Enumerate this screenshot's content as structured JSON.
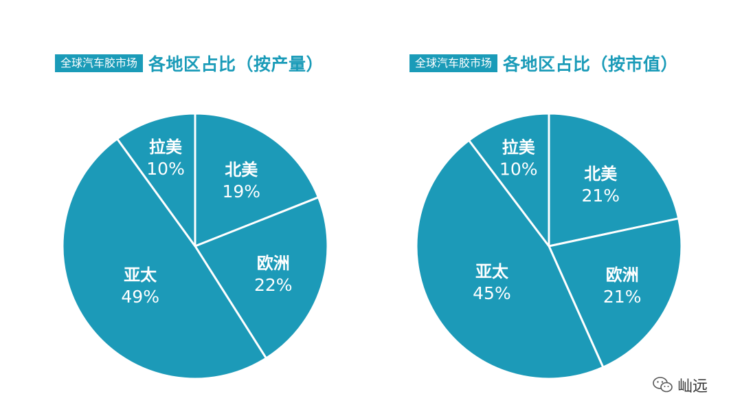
{
  "colors": {
    "accent": "#1a9bb8",
    "slice": "#1c9ab8",
    "separator": "#ffffff",
    "label": "#ffffff"
  },
  "watermark": {
    "text": "屾远",
    "icon": "wechat-icon"
  },
  "chart_data": [
    {
      "type": "pie",
      "title_tag": "全球汽车胶市场",
      "title": "各地区占比（按产量）",
      "slices": [
        {
          "name": "北美",
          "value": 19,
          "label": "19%"
        },
        {
          "name": "欧洲",
          "value": 22,
          "label": "22%"
        },
        {
          "name": "亚太",
          "value": 49,
          "label": "49%"
        },
        {
          "name": "拉美",
          "value": 10,
          "label": "10%"
        }
      ]
    },
    {
      "type": "pie",
      "title_tag": "全球汽车胶市场",
      "title": "各地区占比（按市值）",
      "slices": [
        {
          "name": "北美",
          "value": 21,
          "label": "21%"
        },
        {
          "name": "欧洲",
          "value": 21,
          "label": "21%"
        },
        {
          "name": "亚太",
          "value": 45,
          "label": "45%"
        },
        {
          "name": "拉美",
          "value": 10,
          "label": "10%"
        }
      ]
    }
  ]
}
